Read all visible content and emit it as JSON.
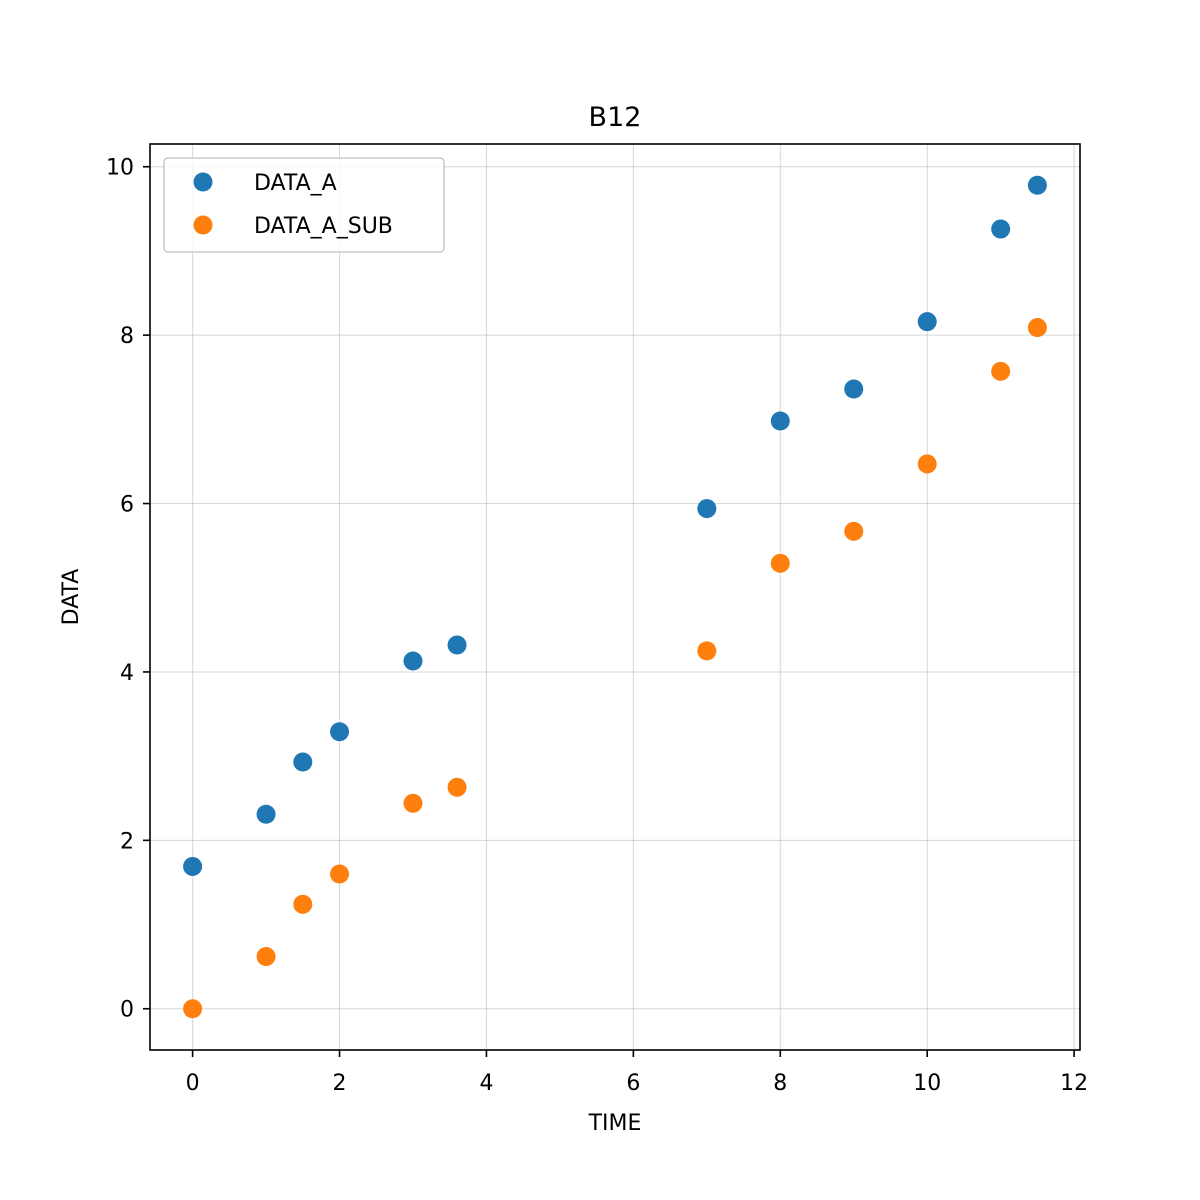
{
  "chart_data": {
    "type": "scatter",
    "title": "B12",
    "xlabel": "TIME",
    "ylabel": "DATA",
    "xlim": [
      -0.58,
      12.08
    ],
    "ylim": [
      -0.49,
      10.27
    ],
    "x_ticks": [
      0,
      2,
      4,
      6,
      8,
      10,
      12
    ],
    "y_ticks": [
      0,
      2,
      4,
      6,
      8,
      10
    ],
    "grid": true,
    "legend_position": "top-left",
    "series": [
      {
        "name": "DATA_A",
        "color": "#1f77b4",
        "x": [
          0,
          1,
          1.5,
          2,
          3,
          3.6,
          7,
          8,
          9,
          10,
          11,
          11.5
        ],
        "y": [
          1.69,
          2.31,
          2.93,
          3.29,
          4.13,
          4.32,
          5.94,
          6.98,
          7.36,
          8.16,
          9.26,
          9.78
        ]
      },
      {
        "name": "DATA_A_SUB",
        "color": "#ff7f0e",
        "x": [
          0,
          1,
          1.5,
          2,
          3,
          3.6,
          7,
          8,
          9,
          10,
          11,
          11.5
        ],
        "y": [
          0.0,
          0.62,
          1.24,
          1.6,
          2.44,
          2.63,
          4.25,
          5.29,
          5.67,
          6.47,
          7.57,
          8.09
        ]
      }
    ]
  }
}
